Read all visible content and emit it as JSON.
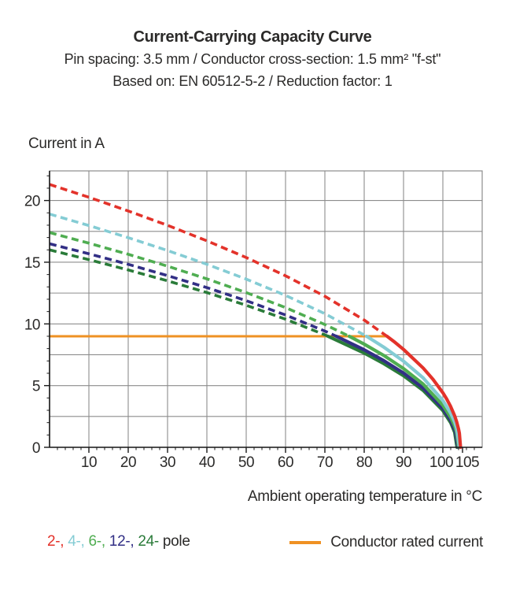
{
  "page": {
    "background": "#ffffff"
  },
  "header": {
    "title": "Current-Carrying Capacity Curve",
    "subtitle_line1": "Pin spacing: 3.5 mm / Conductor cross-section: 1.5 mm² \"f-st\"",
    "subtitle_line2": "Based on: EN 60512-5-2 / Reduction factor: 1"
  },
  "axes": {
    "y_title": "Current in A",
    "x_title": "Ambient operating temperature in °C"
  },
  "legend": {
    "poles": [
      {
        "label": "2-",
        "pole_count": 2,
        "color": "#e3322a"
      },
      {
        "label": "4-",
        "pole_count": 4,
        "color": "#84ccd4"
      },
      {
        "label": "6-",
        "pole_count": 6,
        "color": "#4fad51"
      },
      {
        "label": "12-",
        "pole_count": 12,
        "color": "#322f85"
      },
      {
        "label": "24-",
        "pole_count": 24,
        "color": "#2a7b39"
      }
    ],
    "poles_suffix": " pole",
    "rated_label": "Conductor rated current",
    "rated_color": "#ef9123"
  },
  "chart_data": {
    "type": "line",
    "title": "Current-Carrying Capacity Curve",
    "xlabel": "Ambient operating temperature in °C",
    "ylabel": "Current in A",
    "xlim": [
      0,
      110
    ],
    "ylim": [
      0,
      22.4
    ],
    "xticks_major": [
      10,
      20,
      30,
      40,
      50,
      60,
      70,
      80,
      90,
      100,
      105
    ],
    "yticks_major": [
      0,
      5,
      10,
      15,
      20
    ],
    "x_minor_step": 2,
    "y_minor_step": 1,
    "grid_x_step": 10,
    "grid_y_step": 2.5,
    "grid_on": true,
    "grid_color": "#8c8c8c",
    "axis_color": "#1a1a1a",
    "text_color": "#2b2a29",
    "line_style_note": "curves are dashed above the conductor rated current and solid below it",
    "rated_current": {
      "label": "Conductor rated current",
      "value": 9,
      "x_start": 0,
      "x_end": 85.8,
      "color": "#ef9123"
    },
    "series": [
      {
        "name": "2-pole",
        "color": "#e3322a",
        "dashed_points": [
          [
            0,
            21.3
          ],
          [
            10,
            20.26
          ],
          [
            20,
            19.15
          ],
          [
            30,
            17.99
          ],
          [
            40,
            16.73
          ],
          [
            50,
            15.38
          ],
          [
            60,
            13.9
          ],
          [
            70,
            12.24
          ],
          [
            80,
            10.31
          ],
          [
            85.8,
            9
          ]
        ],
        "solid_points": [
          [
            85.8,
            9
          ],
          [
            87.5,
            8.59
          ],
          [
            90,
            7.93
          ],
          [
            95,
            6.42
          ],
          [
            97.5,
            5.51
          ],
          [
            100,
            4.42
          ],
          [
            101,
            3.9
          ],
          [
            102,
            3.29
          ],
          [
            103,
            2.55
          ],
          [
            103.5,
            2.08
          ],
          [
            104,
            1.47
          ],
          [
            104.2,
            1.14
          ],
          [
            104.5,
            0
          ]
        ]
      },
      {
        "name": "4-pole",
        "color": "#84ccd4",
        "dashed_points": [
          [
            0,
            18.9
          ],
          [
            10,
            17.97
          ],
          [
            20,
            16.99
          ],
          [
            30,
            15.95
          ],
          [
            40,
            14.83
          ],
          [
            50,
            13.63
          ],
          [
            60,
            12.31
          ],
          [
            70,
            10.83
          ],
          [
            80.6,
            9
          ]
        ],
        "solid_points": [
          [
            80.6,
            9
          ],
          [
            85,
            8.11
          ],
          [
            90,
            6.98
          ],
          [
            95,
            5.62
          ],
          [
            100,
            3.79
          ],
          [
            102,
            2.75
          ],
          [
            103,
            2.05
          ],
          [
            103.5,
            1.55
          ],
          [
            104.2,
            0
          ]
        ]
      },
      {
        "name": "6-pole",
        "color": "#4fad51",
        "dashed_points": [
          [
            0,
            17.4
          ],
          [
            10,
            16.54
          ],
          [
            20,
            15.64
          ],
          [
            30,
            14.68
          ],
          [
            40,
            13.65
          ],
          [
            50,
            12.54
          ],
          [
            60,
            11.32
          ],
          [
            70,
            9.95
          ],
          [
            76.2,
            9
          ]
        ],
        "solid_points": [
          [
            76.2,
            9
          ],
          [
            80,
            8.36
          ],
          [
            85,
            7.44
          ],
          [
            90,
            6.38
          ],
          [
            95,
            5.12
          ],
          [
            100,
            3.41
          ],
          [
            102,
            2.41
          ],
          [
            103,
            1.71
          ],
          [
            103.5,
            1.21
          ],
          [
            104,
            0
          ]
        ]
      },
      {
        "name": "12-pole",
        "color": "#322f85",
        "dashed_points": [
          [
            0,
            16.5
          ],
          [
            10,
            15.68
          ],
          [
            20,
            14.83
          ],
          [
            30,
            13.91
          ],
          [
            40,
            12.94
          ],
          [
            50,
            11.88
          ],
          [
            60,
            10.72
          ],
          [
            70,
            9.42
          ],
          [
            72.9,
            9
          ]
        ],
        "solid_points": [
          [
            72.9,
            9
          ],
          [
            80,
            7.9
          ],
          [
            85,
            7.02
          ],
          [
            90,
            6.02
          ],
          [
            95,
            4.8
          ],
          [
            100,
            3.16
          ],
          [
            102,
            2.17
          ],
          [
            103.2,
            1.26
          ],
          [
            103.8,
            0
          ]
        ]
      },
      {
        "name": "24-pole",
        "color": "#2a7b39",
        "dashed_points": [
          [
            0,
            16.0
          ],
          [
            10,
            15.21
          ],
          [
            20,
            14.37
          ],
          [
            30,
            13.49
          ],
          [
            40,
            12.54
          ],
          [
            50,
            11.51
          ],
          [
            60,
            10.38
          ],
          [
            70,
            9.11
          ],
          [
            70.8,
            9
          ]
        ],
        "solid_points": [
          [
            70.8,
            9
          ],
          [
            80,
            7.64
          ],
          [
            85,
            6.78
          ],
          [
            90,
            5.8
          ],
          [
            95,
            4.61
          ],
          [
            100,
            2.98
          ],
          [
            102,
            1.99
          ],
          [
            103,
            1.22
          ],
          [
            103.6,
            0
          ]
        ]
      }
    ]
  }
}
